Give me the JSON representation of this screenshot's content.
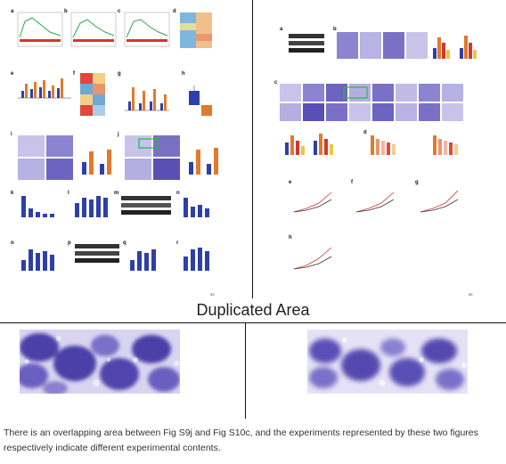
{
  "section_title": "Duplicated Area",
  "caption": "There is an overlapping area between Fig S9j and Fig S10c, and the experiments represented by these two figures respectively indicate different experimental contents.",
  "left_figure": {
    "panel_letters": [
      "a",
      "b",
      "c",
      "d",
      "e",
      "f",
      "g",
      "h",
      "i",
      "j",
      "k",
      "l",
      "m",
      "n",
      "o",
      "p",
      "q",
      "r"
    ],
    "page_number": "53"
  },
  "right_figure": {
    "panel_letters": [
      "a",
      "b",
      "c",
      "d",
      "e",
      "f",
      "g",
      "h"
    ],
    "page_number": "55"
  },
  "colors": {
    "stain_purple": "#5a4fb5",
    "stain_light": "#c9c3ea",
    "bar_orange": "#e07a2c",
    "bar_blue": "#2f3fa8",
    "heat_red": "#e0483c",
    "heat_blue": "#6fa8d8",
    "highlight_green": "#1fbf3a"
  }
}
